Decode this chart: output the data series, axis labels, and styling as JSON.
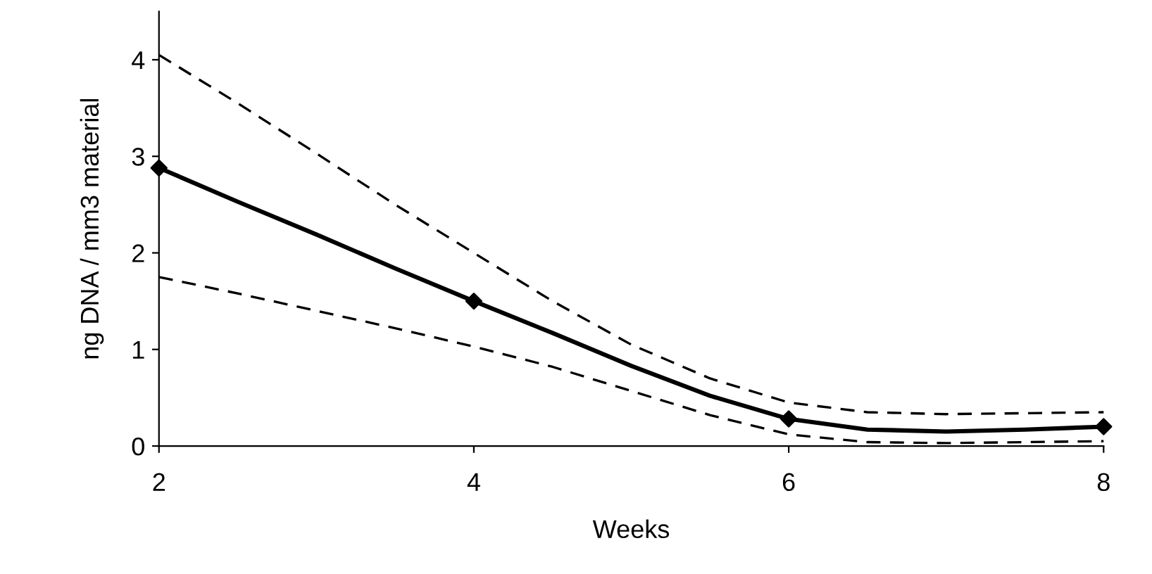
{
  "chart_data": {
    "type": "line",
    "xlabel": "Weeks",
    "ylabel": "ng DNA / mm3 material",
    "x": [
      2,
      2.5,
      3,
      3.5,
      4,
      4.5,
      5,
      5.5,
      6,
      6.5,
      7,
      7.5,
      8
    ],
    "series": [
      {
        "color": "#000000",
        "values": [
          2.88,
          2.53,
          2.19,
          1.84,
          1.5,
          1.17,
          0.83,
          0.52,
          0.28,
          0.17,
          0.15,
          0.17,
          0.2
        ],
        "marker": "none",
        "line_style": "solid"
      },
      {
        "type": "scatter",
        "color": "#000000",
        "x": [
          2,
          4,
          6,
          8
        ],
        "values": [
          2.88,
          1.5,
          0.28,
          0.2
        ],
        "marker": "diamond"
      },
      {
        "color": "#000000",
        "values": [
          4.05,
          3.55,
          3.03,
          2.5,
          2.0,
          1.5,
          1.05,
          0.7,
          0.45,
          0.35,
          0.33,
          0.34,
          0.35
        ],
        "marker": "none",
        "line_style": "dashed"
      },
      {
        "color": "#000000",
        "values": [
          1.75,
          1.58,
          1.4,
          1.22,
          1.03,
          0.82,
          0.57,
          0.32,
          0.12,
          0.04,
          0.03,
          0.04,
          0.05
        ],
        "marker": "none",
        "line_style": "dashed"
      }
    ],
    "xlim": [
      2,
      8
    ],
    "xticks": [
      2,
      4,
      6,
      8
    ],
    "ylim": [
      0,
      4.5
    ],
    "yticks": [
      0,
      1,
      2,
      3,
      4
    ],
    "grid": false,
    "legend": false
  }
}
